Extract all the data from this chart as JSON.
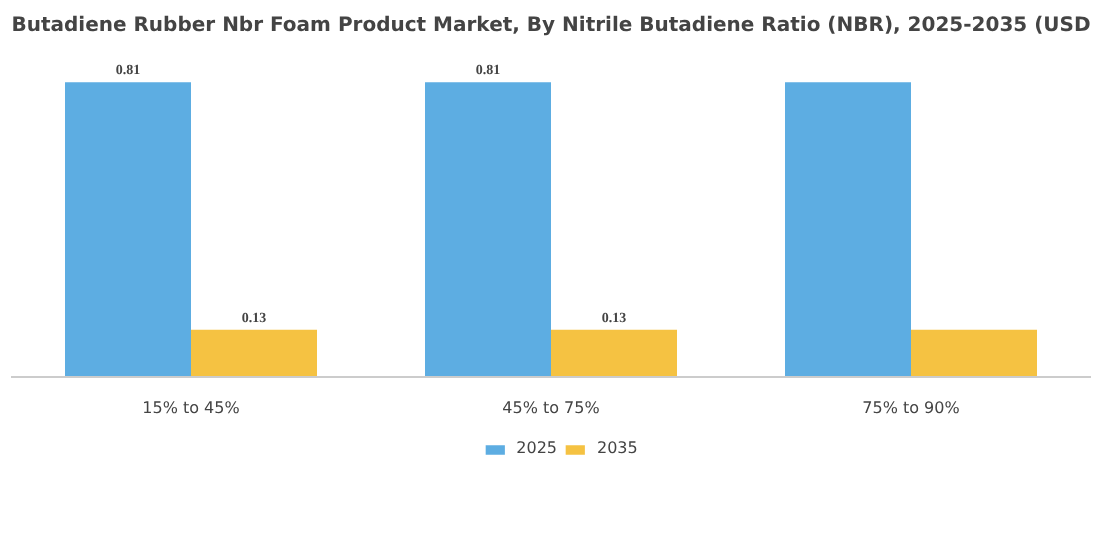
{
  "chart_data": {
    "type": "bar",
    "title": "Butadiene Rubber Nbr Foam Product Market, By Nitrile Butadiene Ratio (NBR), 2025-2035 (USD",
    "categories": [
      "15% to 45%",
      "45% to 75%",
      "75% to 90%"
    ],
    "series": [
      {
        "name": "2025",
        "color": "#5dade2",
        "values": [
          0.81,
          0.81,
          0.81
        ],
        "value_labels": [
          "0.81",
          "0.81",
          null
        ]
      },
      {
        "name": "2035",
        "color": "#f5c242",
        "values": [
          0.13,
          0.13,
          0.13
        ],
        "value_labels": [
          "0.13",
          "0.13",
          null
        ]
      }
    ],
    "legend": "bottom"
  }
}
